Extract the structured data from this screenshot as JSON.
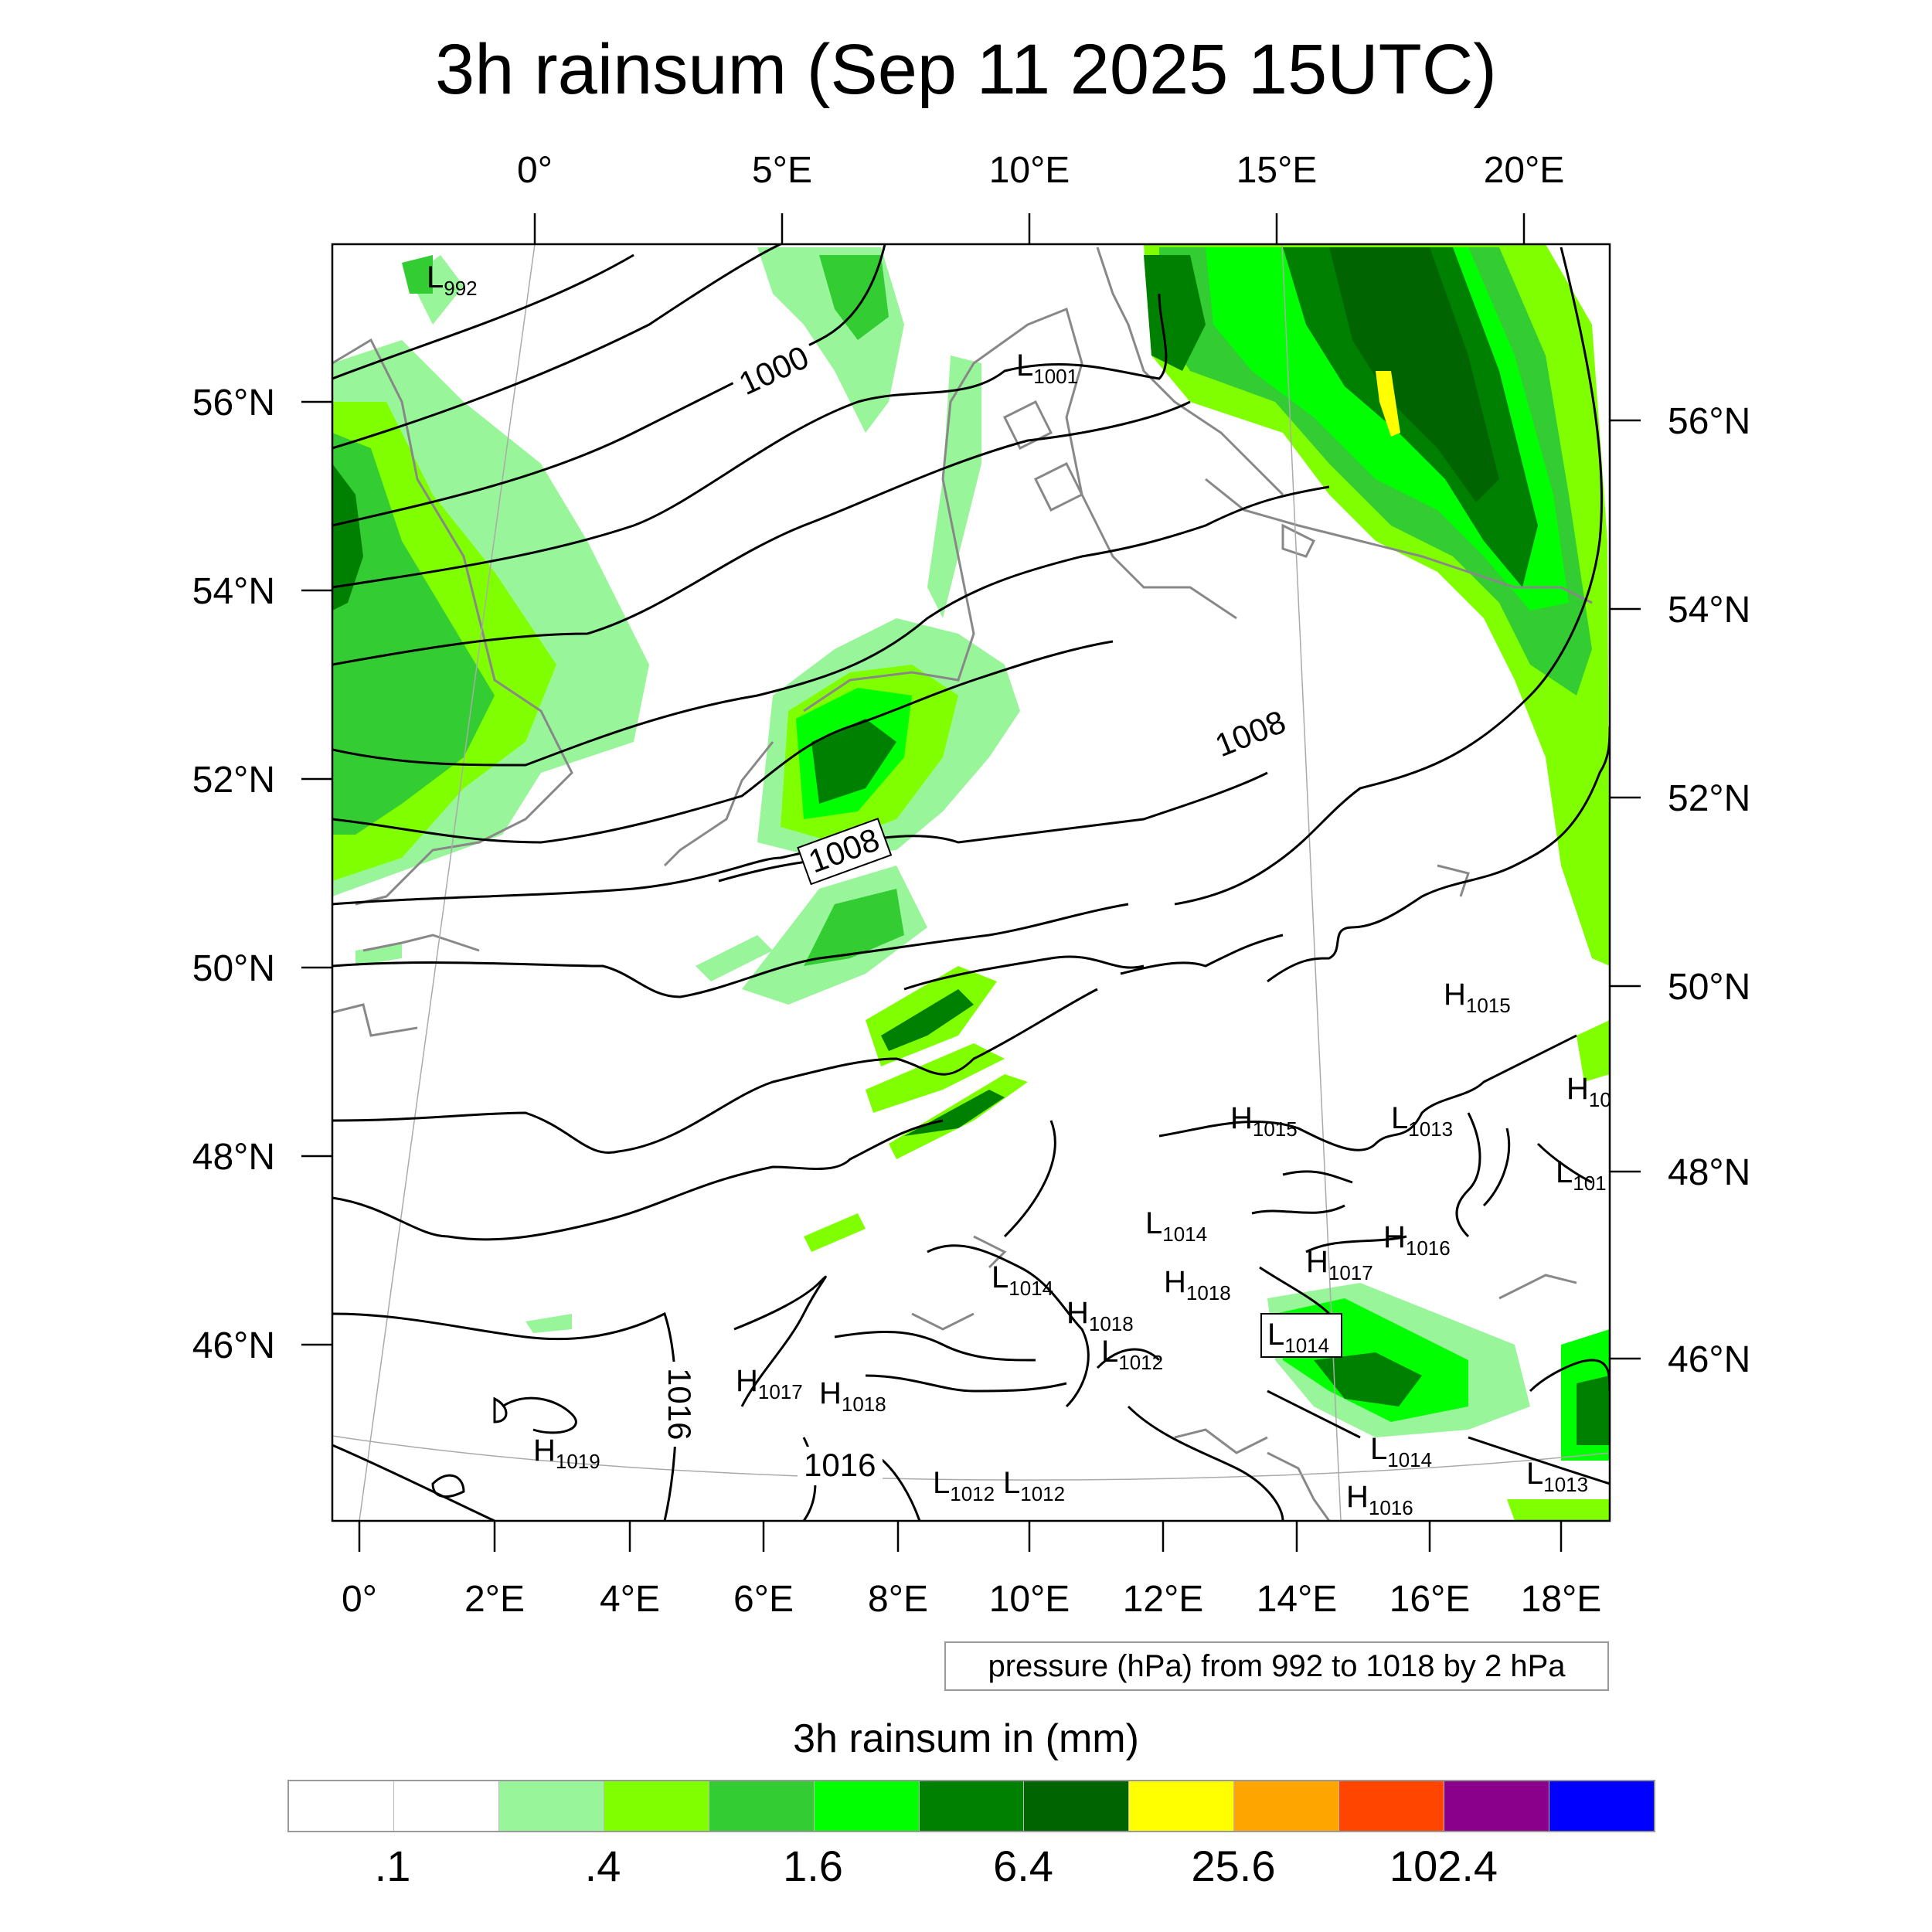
{
  "title": "3h rainsum (Sep 11 2025 15UTC)",
  "top_lon_labels": [
    "0°",
    "5°E",
    "10°E",
    "15°E",
    "20°E"
  ],
  "bottom_lon_labels": [
    "0°",
    "2°E",
    "4°E",
    "6°E",
    "8°E",
    "10°E",
    "12°E",
    "14°E",
    "16°E",
    "18°E"
  ],
  "left_lat_labels": [
    "56°N",
    "54°N",
    "52°N",
    "50°N",
    "48°N",
    "46°N"
  ],
  "right_lat_labels": [
    "56°N",
    "54°N",
    "52°N",
    "50°N",
    "48°N",
    "46°N"
  ],
  "isobar_labels": [
    "1000",
    "1008",
    "1008",
    "1016",
    "1016"
  ],
  "pressure_centers": [
    {
      "type": "L",
      "value": "992"
    },
    {
      "type": "L",
      "value": "1001"
    },
    {
      "type": "H",
      "value": "1015"
    },
    {
      "type": "H",
      "value": "10"
    },
    {
      "type": "H",
      "value": "1015"
    },
    {
      "type": "L",
      "value": "1013"
    },
    {
      "type": "L",
      "value": "101"
    },
    {
      "type": "L",
      "value": "1014"
    },
    {
      "type": "H",
      "value": "1016"
    },
    {
      "type": "H",
      "value": "1017"
    },
    {
      "type": "L",
      "value": "1014"
    },
    {
      "type": "H",
      "value": "1018"
    },
    {
      "type": "H",
      "value": "1018"
    },
    {
      "type": "L",
      "value": "1012"
    },
    {
      "type": "L",
      "value": "1014"
    },
    {
      "type": "H",
      "value": "1017"
    },
    {
      "type": "H",
      "value": "1018"
    },
    {
      "type": "H",
      "value": "1019"
    },
    {
      "type": "L",
      "value": "1012"
    },
    {
      "type": "L",
      "value": "1012"
    },
    {
      "type": "L",
      "value": "1014"
    },
    {
      "type": "H",
      "value": "1016"
    },
    {
      "type": "L",
      "value": "1013"
    }
  ],
  "contour_info": "pressure (hPa) from 992 to 1018 by 2 hPa",
  "colorbar": {
    "title": "3h rainsum in (mm)",
    "colors": [
      "#ffffff",
      "#ffffff",
      "#99f599",
      "#80ff00",
      "#33cc33",
      "#00ff00",
      "#008000",
      "#006400",
      "#ffff00",
      "#ffa500",
      "#ff4500",
      "#8b008b",
      "#0000ff"
    ],
    "labels": [
      ".1",
      ".4",
      "1.6",
      "6.4",
      "25.6",
      "102.4"
    ],
    "rain_colors": {
      "light": "#99f599",
      "lime": "#80ff00",
      "mid": "#33cc33",
      "green": "#00ff00",
      "dark": "#008000",
      "darkest": "#006400",
      "yellow": "#ffff00"
    }
  }
}
